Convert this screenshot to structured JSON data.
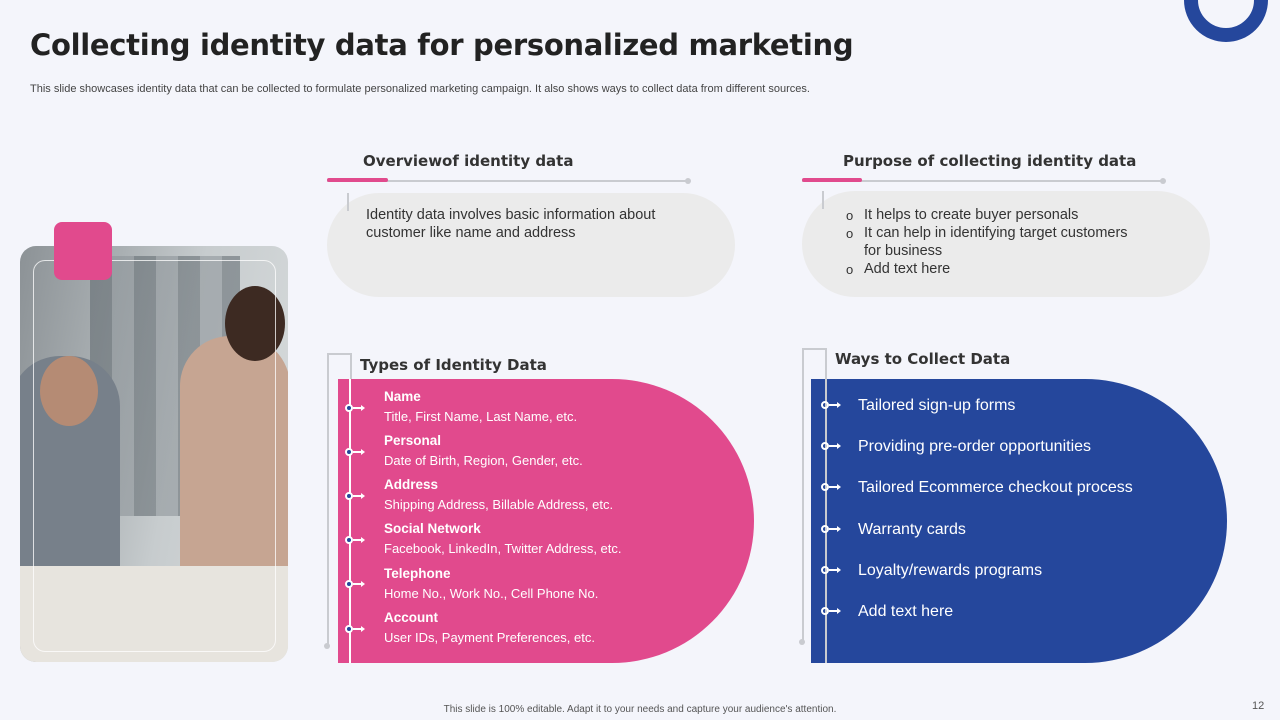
{
  "slide": {
    "title": "Collecting identity data for personalized marketing",
    "subtitle": "This slide showcases identity data that can be collected to formulate personalized marketing campaign. It also shows ways to collect data from different sources.",
    "footer": "This slide is 100% editable. Adapt it to your needs and capture your audience's attention.",
    "page_number": "12"
  },
  "overview": {
    "heading": "Overviewof identity data",
    "text": "Identity data involves basic information about customer like name and address"
  },
  "purpose": {
    "heading": "Purpose of collecting identity data",
    "items": [
      "It helps to create buyer personals",
      "It can help in identifying target customers for business",
      "Add text here"
    ]
  },
  "types": {
    "heading": "Types of Identity Data",
    "items": [
      {
        "title": "Name",
        "desc": "Title, First Name, Last Name, etc."
      },
      {
        "title": "Personal",
        "desc": "Date of Birth, Region, Gender,  etc."
      },
      {
        "title": "Address",
        "desc": "Shipping Address, Billable Address, etc."
      },
      {
        "title": "Social Network",
        "desc": "Facebook, LinkedIn, Twitter Address, etc."
      },
      {
        "title": "Telephone",
        "desc": "Home No., Work No., Cell Phone No."
      },
      {
        "title": "Account",
        "desc": "User IDs, Payment Preferences,  etc."
      }
    ]
  },
  "ways": {
    "heading": "Ways to Collect Data",
    "items": [
      "Tailored sign-up forms",
      "Providing pre-order opportunities",
      "Tailored Ecommerce checkout process",
      "Warranty  cards",
      "Loyalty/rewards  programs",
      "Add text here"
    ]
  },
  "colors": {
    "accent_pink": "#e14a8d",
    "accent_blue": "#25479c",
    "background": "#f4f5fb"
  }
}
